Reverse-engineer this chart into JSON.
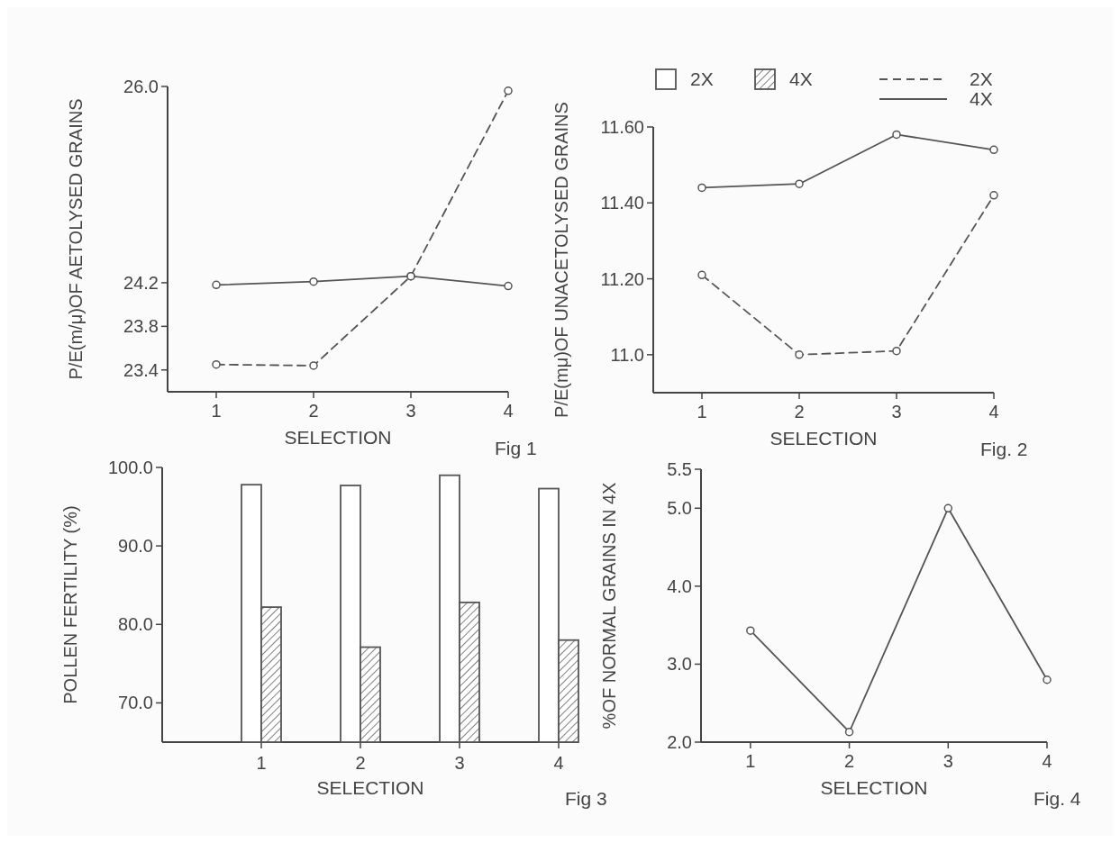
{
  "chart_data": [
    {
      "type": "line",
      "ylabel": "P/E(m/μ)OF AETOLYSED GRAINS",
      "xlabel": "SELECTION",
      "annotations": [
        "Fig 1"
      ],
      "marker": "circle",
      "x": [
        1,
        2,
        3,
        4
      ],
      "xlim": [
        0.5,
        4
      ],
      "xticks": [
        1,
        2,
        3,
        4
      ],
      "ylim": [
        23.2,
        26.0
      ],
      "yticks": [
        23.4,
        23.8,
        24.2,
        {
          "value": 26.0,
          "label": "26.0"
        }
      ],
      "series": [
        {
          "color": "#555555",
          "line_style": "dashed",
          "values": [
            23.45,
            23.44,
            24.26,
            25.96
          ]
        },
        {
          "color": "#555555",
          "line_style": "solid",
          "values": [
            24.18,
            24.21,
            24.26,
            24.17
          ]
        }
      ]
    },
    {
      "type": "line",
      "ylabel": "P/E(mμ)OF UNACETOLYSED GRAINS",
      "xlabel": "SELECTION",
      "annotations": [
        "Fig. 2"
      ],
      "marker": "circle",
      "legend": "top right",
      "x": [
        1,
        2,
        3,
        4
      ],
      "xlim": [
        0.5,
        4
      ],
      "xticks": [
        1,
        2,
        3,
        4
      ],
      "ylim": [
        10.9,
        11.6
      ],
      "yticks": [
        {
          "value": 11.0,
          "label": "11.0"
        },
        {
          "value": 11.2,
          "label": "11.20"
        },
        {
          "value": 11.4,
          "label": "11.40"
        },
        {
          "value": 11.6,
          "label": "11.60"
        }
      ],
      "series": [
        {
          "name": "2X",
          "color": "#555555",
          "line_style": "dashed",
          "values": [
            11.21,
            11.0,
            11.01,
            11.42
          ]
        },
        {
          "name": "4X",
          "color": "#555555",
          "line_style": "solid",
          "values": [
            11.44,
            11.45,
            11.58,
            11.54
          ]
        }
      ]
    },
    {
      "type": "bar",
      "ylabel": "POLLEN FERTILITY (%)",
      "xlabel": "SELECTION",
      "annotations": [
        "Fig 3"
      ],
      "legend": "top",
      "categories": [
        "1",
        "2",
        "3",
        "4"
      ],
      "ylim": [
        65,
        100
      ],
      "yticks": [
        {
          "value": 70,
          "label": "70.0"
        },
        {
          "value": 80,
          "label": "80.0"
        },
        {
          "value": 90,
          "label": "90.0"
        },
        {
          "value": 100,
          "label": "100.0"
        }
      ],
      "series": [
        {
          "name": "2X",
          "color": "#ffffff",
          "values": [
            97.8,
            97.7,
            99.0,
            97.3
          ]
        },
        {
          "name": "4X",
          "color": "#555555",
          "values": [
            82.2,
            77.1,
            82.8,
            78.0
          ]
        }
      ]
    },
    {
      "type": "line",
      "ylabel": "%OF NORMAL GRAINS IN 4X",
      "xlabel": "SELECTION",
      "annotations": [
        "Fig. 4"
      ],
      "marker": "circle",
      "x": [
        1,
        2,
        3,
        4
      ],
      "xlim": [
        0.5,
        4
      ],
      "xticks": [
        1,
        2,
        3,
        4
      ],
      "ylim": [
        2.0,
        5.5
      ],
      "yticks": [
        {
          "value": 2.0,
          "label": "2.0"
        },
        {
          "value": 3.0,
          "label": "3.0"
        },
        {
          "value": 4.0,
          "label": "4.0"
        },
        {
          "value": 5.0,
          "label": "5.0"
        },
        {
          "value": 5.5,
          "label": "5.5"
        }
      ],
      "series": [
        {
          "color": "#555555",
          "values": [
            3.43,
            2.13,
            5.0,
            2.8
          ]
        }
      ]
    }
  ]
}
